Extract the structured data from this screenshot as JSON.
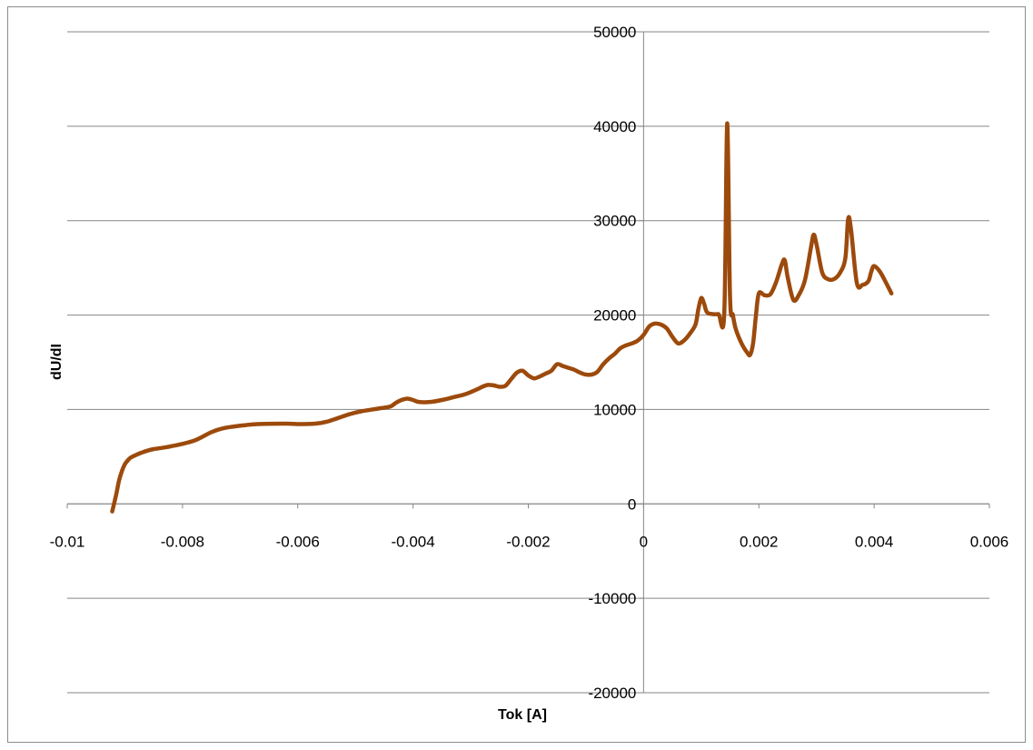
{
  "chart_data": {
    "type": "line",
    "title": "",
    "xlabel": "Tok [A]",
    "ylabel": "dU/dI",
    "xlim": [
      -0.01,
      0.006
    ],
    "ylim": [
      -20000,
      50000
    ],
    "x_ticks": [
      -0.01,
      -0.008,
      -0.006,
      -0.004,
      -0.002,
      0,
      0.002,
      0.004,
      0.006
    ],
    "x_tick_labels": [
      "-0.01",
      "-0.008",
      "-0.006",
      "-0.004",
      "-0.002",
      "0",
      "0.002",
      "0.004",
      "0.006"
    ],
    "y_ticks": [
      -20000,
      -10000,
      0,
      10000,
      20000,
      30000,
      40000,
      50000
    ],
    "y_tick_labels": [
      "-20000",
      "-10000",
      "0",
      "10000",
      "20000",
      "30000",
      "40000",
      "50000"
    ],
    "grid": "horizontal",
    "legend": "none",
    "series_color": "#9C4A0C",
    "series": [
      {
        "x": [
          -0.00922,
          -0.00915,
          -0.0091,
          -0.00905,
          -0.009,
          -0.00895,
          -0.0089,
          -0.0088,
          -0.0087,
          -0.0086,
          -0.0085,
          -0.0082,
          -0.0078,
          -0.0075,
          -0.0073,
          -0.0071,
          -0.0069,
          -0.0067,
          -0.0062,
          -0.006,
          -0.0057,
          -0.0055,
          -0.0053,
          -0.0051,
          -0.0049,
          -0.0046,
          -0.0044,
          -0.0043,
          -0.0042,
          -0.0041,
          -0.004,
          -0.0039,
          -0.0037,
          -0.0035,
          -0.0033,
          -0.0031,
          -0.0029,
          -0.0028,
          -0.0027,
          -0.0026,
          -0.0025,
          -0.0024,
          -0.0023,
          -0.0022,
          -0.0021,
          -0.002,
          -0.0019,
          -0.0018,
          -0.0017,
          -0.0016,
          -0.0015,
          -0.0014,
          -0.0013,
          -0.0012,
          -0.0011,
          -0.001,
          -0.0009,
          -0.0008,
          -0.0007,
          -0.0006,
          -0.0005,
          -0.0004,
          -0.0003,
          -0.0002,
          -0.0001,
          0.0,
          0.0001,
          0.0002,
          0.0003,
          0.0004,
          0.0005,
          0.0006,
          0.0007,
          0.0008,
          0.0009,
          0.00095,
          0.001,
          0.00105,
          0.0011,
          0.0012,
          0.0013,
          0.0014,
          0.00145,
          0.0015,
          0.00155,
          0.0016,
          0.0017,
          0.0018,
          0.00185,
          0.0019,
          0.00195,
          0.002,
          0.0021,
          0.0022,
          0.0023,
          0.0024,
          0.00245,
          0.0025,
          0.0026,
          0.0027,
          0.0028,
          0.0029,
          0.00295,
          0.003,
          0.0031,
          0.0032,
          0.0033,
          0.0034,
          0.0035,
          0.00355,
          0.0036,
          0.0037,
          0.0038,
          0.0039,
          0.00395,
          0.004,
          0.0041,
          0.0042,
          0.0043
        ],
        "values": [
          -800,
          1000,
          2500,
          3500,
          4200,
          4600,
          4900,
          5200,
          5450,
          5650,
          5800,
          6100,
          6700,
          7600,
          8000,
          8200,
          8350,
          8450,
          8500,
          8450,
          8500,
          8700,
          9100,
          9500,
          9800,
          10100,
          10300,
          10700,
          11000,
          11150,
          11000,
          10800,
          10800,
          11000,
          11300,
          11600,
          12100,
          12400,
          12600,
          12550,
          12400,
          12500,
          13200,
          13900,
          14100,
          13600,
          13300,
          13500,
          13800,
          14100,
          14800,
          14600,
          14400,
          14200,
          13900,
          13700,
          13700,
          14000,
          14800,
          15400,
          15900,
          16500,
          16800,
          17000,
          17300,
          17900,
          18800,
          19100,
          19000,
          18600,
          17700,
          17000,
          17300,
          18000,
          19000,
          20600,
          21800,
          21200,
          20300,
          20100,
          20100,
          20200,
          40300,
          22000,
          20000,
          18500,
          17000,
          16000,
          15800,
          17000,
          20000,
          22300,
          22100,
          22200,
          23500,
          25400,
          25800,
          24000,
          21600,
          22200,
          23700,
          27000,
          28500,
          27500,
          24500,
          23800,
          23800,
          24400,
          26000,
          30200,
          29000,
          23400,
          23200,
          23600,
          24600,
          25200,
          24600,
          23500,
          22300
        ]
      }
    ]
  }
}
